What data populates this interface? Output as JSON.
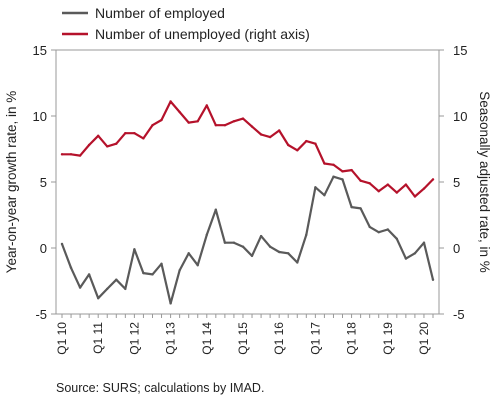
{
  "chart_data": {
    "type": "line",
    "legend": {
      "placement": "top-left",
      "entries": [
        "Number of employed",
        "Number of unemployed (right axis)"
      ]
    },
    "ylabel": "Year-on-year growth rate, in %",
    "ylabel_right": "Seasonally adjusted rate, in %",
    "ylim": [
      -5,
      15
    ],
    "ylim_right": [
      -5,
      15
    ],
    "yticks": [
      "15",
      "10",
      "5",
      "0",
      "-5"
    ],
    "yticks_right": [
      "15",
      "10",
      "5",
      "0",
      "-5"
    ],
    "grid": false,
    "x": [
      "Q1 10",
      "Q2 10",
      "Q3 10",
      "Q4 10",
      "Q1 11",
      "Q2 11",
      "Q3 11",
      "Q4 11",
      "Q1 12",
      "Q2 12",
      "Q3 12",
      "Q4 12",
      "Q1 13",
      "Q2 13",
      "Q3 13",
      "Q4 13",
      "Q1 14",
      "Q2 14",
      "Q3 14",
      "Q4 14",
      "Q1 15",
      "Q2 15",
      "Q3 15",
      "Q4 15",
      "Q1 16",
      "Q2 16",
      "Q3 16",
      "Q4 16",
      "Q1 17",
      "Q2 17",
      "Q3 17",
      "Q4 17",
      "Q1 18",
      "Q2 18",
      "Q3 18",
      "Q4 18",
      "Q1 19",
      "Q2 19",
      "Q3 19",
      "Q4 19",
      "Q1 20",
      "Q2 20"
    ],
    "xtick_labels": [
      "Q1 10",
      "Q1 11",
      "Q1 12",
      "Q1 13",
      "Q1 14",
      "Q1 15",
      "Q1 16",
      "Q1 17",
      "Q1 18",
      "Q1 19",
      "Q1 20"
    ],
    "series": [
      {
        "name": "Number of employed",
        "axis": "left",
        "color": "#5a5a5a",
        "values": [
          0.3,
          -1.5,
          -3.0,
          -2.0,
          -3.8,
          -3.1,
          -2.4,
          -3.1,
          -0.1,
          -1.9,
          -2.0,
          -1.2,
          -4.2,
          -1.7,
          -0.4,
          -1.3,
          1.0,
          2.9,
          0.4,
          0.4,
          0.1,
          -0.6,
          0.9,
          0.1,
          -0.3,
          -0.4,
          -1.1,
          1.0,
          4.6,
          4.0,
          5.4,
          5.2,
          3.1,
          3.0,
          1.6,
          1.2,
          1.4,
          0.7,
          -0.8,
          -0.4,
          0.4,
          -2.4
        ]
      },
      {
        "name": "Number of unemployed (right axis)",
        "axis": "right",
        "color": "#b5122b",
        "values": [
          7.1,
          7.1,
          7.0,
          7.8,
          8.5,
          7.7,
          7.9,
          8.7,
          8.7,
          8.3,
          9.3,
          9.7,
          11.1,
          10.3,
          9.5,
          9.6,
          10.8,
          9.3,
          9.3,
          9.6,
          9.8,
          9.2,
          8.6,
          8.4,
          8.9,
          7.8,
          7.4,
          8.1,
          7.9,
          6.4,
          6.3,
          5.8,
          5.9,
          5.1,
          4.9,
          4.3,
          4.8,
          4.2,
          4.8,
          3.9,
          4.5,
          5.2
        ]
      }
    ]
  },
  "source": "Source: SURS; calculations by IMAD."
}
